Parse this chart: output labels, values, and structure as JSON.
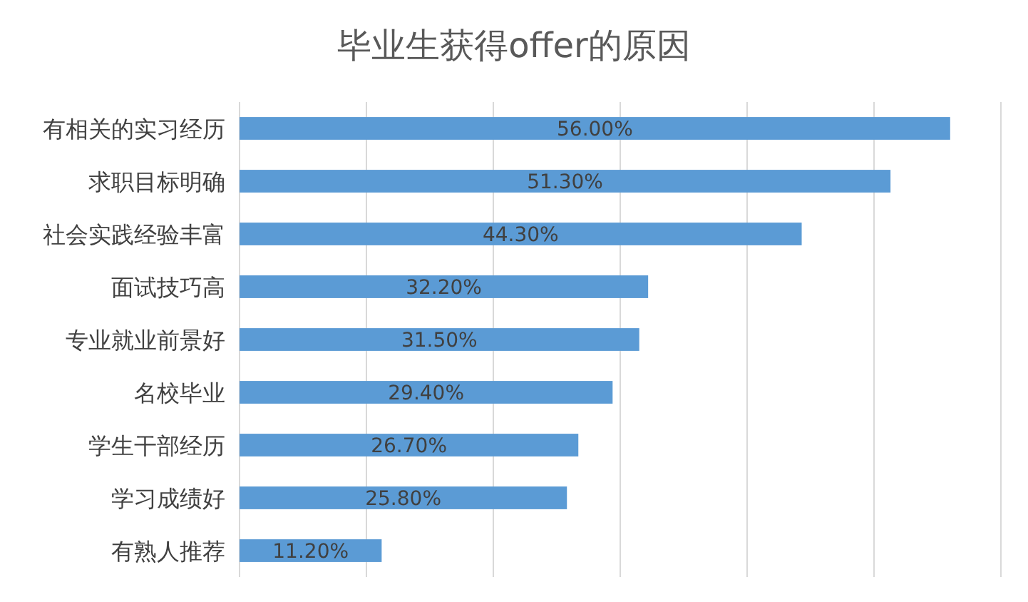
{
  "chart_data": {
    "type": "bar",
    "orientation": "horizontal",
    "title": "毕业生获得offer的原因",
    "categories": [
      "有相关的实习经历",
      "求职目标明确",
      "社会实践经验丰富",
      "面试技巧高",
      "专业就业前景好",
      "名校毕业",
      "学生干部经历",
      "学习成绩好",
      "有熟人推荐"
    ],
    "values": [
      56.0,
      51.3,
      44.3,
      32.2,
      31.5,
      29.4,
      26.7,
      25.8,
      11.2
    ],
    "value_labels": [
      "56.00%",
      "51.30%",
      "44.30%",
      "32.20%",
      "31.50%",
      "29.40%",
      "26.70%",
      "25.80%",
      "11.20%"
    ],
    "color": "#5b9bd5",
    "xlim": [
      0,
      60
    ],
    "xticks": [
      {
        "value": 0,
        "label": null
      },
      {
        "value": 10,
        "label": null
      },
      {
        "value": 20,
        "label": null
      },
      {
        "value": 30,
        "label": null
      },
      {
        "value": 40,
        "label": null
      },
      {
        "value": 50,
        "label": null
      },
      {
        "value": 60,
        "label": null
      }
    ],
    "grid": "x",
    "tick_labels": "y"
  }
}
